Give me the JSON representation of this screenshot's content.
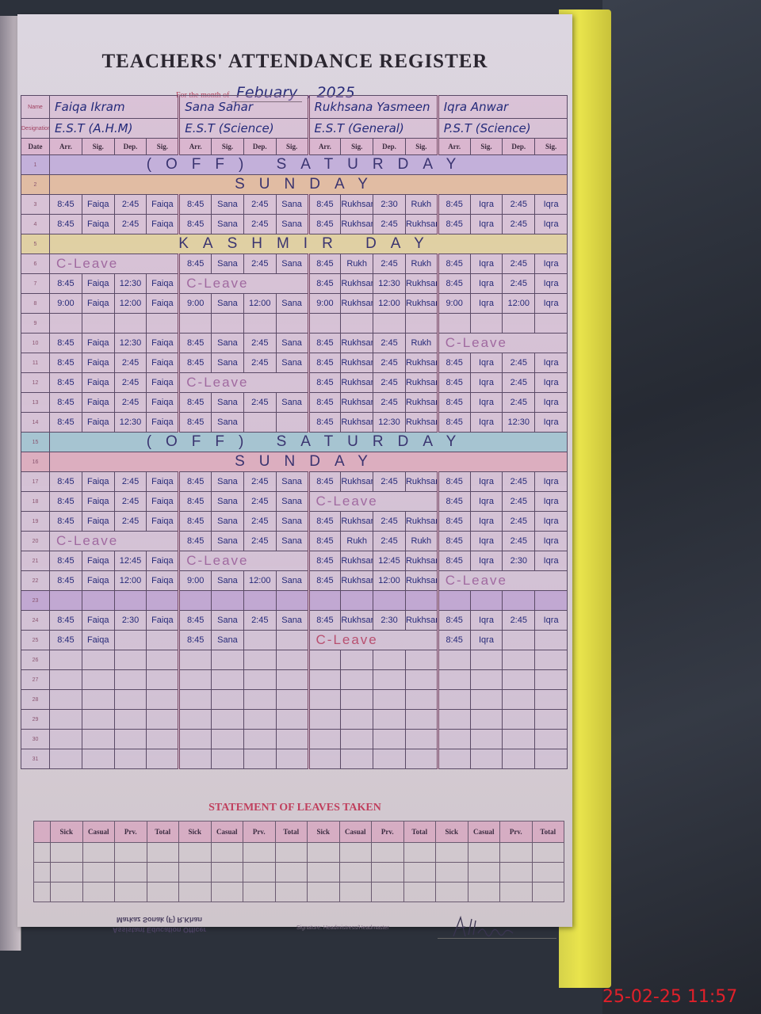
{
  "register": {
    "title": "TEACHERS' ATTENDANCE REGISTER",
    "month_label": "For the month of",
    "month_value": "Febuary",
    "year": ", 2025"
  },
  "labels": {
    "name": "Name",
    "designation": "Designation",
    "date": "Date"
  },
  "teachers": [
    {
      "name": "Faiqa Ikram",
      "designation": "E.S.T (A.H.M)"
    },
    {
      "name": "Sana Sahar",
      "designation": "E.S.T (Science)"
    },
    {
      "name": "Rukhsana Yasmeen",
      "designation": "E.S.T (General)"
    },
    {
      "name": "Iqra Anwar",
      "designation": "P.S.T (Science)"
    }
  ],
  "subheaders": [
    "Arr.",
    "Sig.",
    "Dep.",
    "Sig."
  ],
  "rows": [
    {
      "date": "1",
      "note": "(OFF) SATURDAY",
      "band": "#b9a6dc"
    },
    {
      "date": "2",
      "note": "SUNDAY",
      "band": "#e6b88a"
    },
    {
      "date": "3",
      "entries": [
        [
          "8:45",
          "Faiqa",
          "2:45",
          "Faiqa"
        ],
        [
          "8:45",
          "Sana",
          "2:45",
          "Sana"
        ],
        [
          "8:45",
          "Rukhsana",
          "2:30",
          "Rukh"
        ],
        [
          "8:45",
          "Iqra",
          "2:45",
          "Iqra"
        ]
      ]
    },
    {
      "date": "4",
      "entries": [
        [
          "8:45",
          "Faiqa",
          "2:45",
          "Faiqa"
        ],
        [
          "8:45",
          "Sana",
          "2:45",
          "Sana"
        ],
        [
          "8:45",
          "Rukhsana",
          "2:45",
          "Rukhsana"
        ],
        [
          "8:45",
          "Iqra",
          "2:45",
          "Iqra"
        ]
      ]
    },
    {
      "date": "5",
      "note": "KASHMIR DAY",
      "band": "#e4d68a"
    },
    {
      "date": "6",
      "entries": [
        {
          "leave": "C-Leave"
        },
        [
          "8:45",
          "Sana",
          "2:45",
          "Sana"
        ],
        [
          "8:45",
          "Rukh",
          "2:45",
          "Rukh"
        ],
        [
          "8:45",
          "Iqra",
          "2:45",
          "Iqra"
        ]
      ]
    },
    {
      "date": "7",
      "entries": [
        [
          "8:45",
          "Faiqa",
          "12:30",
          "Faiqa"
        ],
        {
          "leave": "C-Leave"
        },
        [
          "8:45",
          "Rukhsana",
          "12:30",
          "Rukhsana"
        ],
        [
          "8:45",
          "Iqra",
          "2:45",
          "Iqra"
        ]
      ]
    },
    {
      "date": "8",
      "entries": [
        [
          "9:00",
          "Faiqa",
          "12:00",
          "Faiqa"
        ],
        [
          "9:00",
          "Sana",
          "12:00",
          "Sana"
        ],
        [
          "9:00",
          "Rukhsana",
          "12:00",
          "Rukhsana"
        ],
        [
          "9:00",
          "Iqra",
          "12:00",
          "Iqra"
        ]
      ]
    },
    {
      "date": "9"
    },
    {
      "date": "10",
      "entries": [
        [
          "8:45",
          "Faiqa",
          "12:30",
          "Faiqa"
        ],
        [
          "8:45",
          "Sana",
          "2:45",
          "Sana"
        ],
        [
          "8:45",
          "Rukhsana",
          "2:45",
          "Rukh"
        ],
        {
          "leave": "C-Leave"
        }
      ]
    },
    {
      "date": "11",
      "entries": [
        [
          "8:45",
          "Faiqa",
          "2:45",
          "Faiqa"
        ],
        [
          "8:45",
          "Sana",
          "2:45",
          "Sana"
        ],
        [
          "8:45",
          "Rukhsana",
          "2:45",
          "Rukhsana"
        ],
        [
          "8:45",
          "Iqra",
          "2:45",
          "Iqra"
        ]
      ]
    },
    {
      "date": "12",
      "entries": [
        [
          "8:45",
          "Faiqa",
          "2:45",
          "Faiqa"
        ],
        {
          "leave": "C-Leave"
        },
        [
          "8:45",
          "Rukhsana",
          "2:45",
          "Rukhsana"
        ],
        [
          "8:45",
          "Iqra",
          "2:45",
          "Iqra"
        ]
      ]
    },
    {
      "date": "13",
      "entries": [
        [
          "8:45",
          "Faiqa",
          "2:45",
          "Faiqa"
        ],
        [
          "8:45",
          "Sana",
          "2:45",
          "Sana"
        ],
        [
          "8:45",
          "Rukhsana",
          "2:45",
          "Rukhsana"
        ],
        [
          "8:45",
          "Iqra",
          "2:45",
          "Iqra"
        ]
      ]
    },
    {
      "date": "14",
      "entries": [
        [
          "8:45",
          "Faiqa",
          "12:30",
          "Faiqa"
        ],
        [
          "8:45",
          "Sana",
          "",
          ""
        ],
        [
          "8:45",
          "Rukhsana",
          "12:30",
          "Rukhsana"
        ],
        [
          "8:45",
          "Iqra",
          "12:30",
          "Iqra"
        ]
      ]
    },
    {
      "date": "15",
      "note": "(OFF) SATURDAY",
      "band": "#8ec4cf"
    },
    {
      "date": "16",
      "note": "SUNDAY",
      "band": "#e0a4b4"
    },
    {
      "date": "17",
      "entries": [
        [
          "8:45",
          "Faiqa",
          "2:45",
          "Faiqa"
        ],
        [
          "8:45",
          "Sana",
          "2:45",
          "Sana"
        ],
        [
          "8:45",
          "Rukhsana",
          "2:45",
          "Rukhsana"
        ],
        [
          "8:45",
          "Iqra",
          "2:45",
          "Iqra"
        ]
      ]
    },
    {
      "date": "18",
      "entries": [
        [
          "8:45",
          "Faiqa",
          "2:45",
          "Faiqa"
        ],
        [
          "8:45",
          "Sana",
          "2:45",
          "Sana"
        ],
        {
          "leave": "C-Leave"
        },
        [
          "8:45",
          "Iqra",
          "2:45",
          "Iqra"
        ]
      ]
    },
    {
      "date": "19",
      "entries": [
        [
          "8:45",
          "Faiqa",
          "2:45",
          "Faiqa"
        ],
        [
          "8:45",
          "Sana",
          "2:45",
          "Sana"
        ],
        [
          "8:45",
          "Rukhsana",
          "2:45",
          "Rukhsana"
        ],
        [
          "8:45",
          "Iqra",
          "2:45",
          "Iqra"
        ]
      ]
    },
    {
      "date": "20",
      "entries": [
        {
          "leave": "C-Leave"
        },
        [
          "8:45",
          "Sana",
          "2:45",
          "Sana"
        ],
        [
          "8:45",
          "Rukh",
          "2:45",
          "Rukh"
        ],
        [
          "8:45",
          "Iqra",
          "2:45",
          "Iqra"
        ]
      ]
    },
    {
      "date": "21",
      "entries": [
        [
          "8:45",
          "Faiqa",
          "12:45",
          "Faiqa"
        ],
        {
          "leave": "C-Leave"
        },
        [
          "8:45",
          "Rukhsana",
          "12:45",
          "Rukhsana"
        ],
        [
          "8:45",
          "Iqra",
          "2:30",
          "Iqra"
        ]
      ]
    },
    {
      "date": "22",
      "entries": [
        [
          "8:45",
          "Faiqa",
          "12:00",
          "Faiqa"
        ],
        [
          "9:00",
          "Sana",
          "12:00",
          "Sana"
        ],
        [
          "8:45",
          "Rukhsana",
          "12:00",
          "Rukhsana"
        ],
        {
          "leave": "C-Leave"
        }
      ]
    },
    {
      "date": "23",
      "band": "#b89ad0"
    },
    {
      "date": "24",
      "entries": [
        [
          "8:45",
          "Faiqa",
          "2:30",
          "Faiqa"
        ],
        [
          "8:45",
          "Sana",
          "2:45",
          "Sana"
        ],
        [
          "8:45",
          "Rukhsana",
          "2:30",
          "Rukhsana"
        ],
        [
          "8:45",
          "Iqra",
          "2:45",
          "Iqra"
        ]
      ]
    },
    {
      "date": "25",
      "entries": [
        [
          "8:45",
          "Faiqa",
          "",
          ""
        ],
        [
          "8:45",
          "Sana",
          "",
          ""
        ],
        {
          "leave": "C-Leave"
        },
        [
          "8:45",
          "Iqra",
          "",
          ""
        ]
      ]
    },
    {
      "date": "26"
    },
    {
      "date": "27"
    },
    {
      "date": "28"
    },
    {
      "date": "29"
    },
    {
      "date": "30"
    },
    {
      "date": "31"
    }
  ],
  "leaves": {
    "title": "STATEMENT OF LEAVES TAKEN",
    "subheaders": [
      "Sick",
      "Casual",
      "Prv.",
      "Total"
    ]
  },
  "footer": {
    "stamp_line1": "Assistant Education Officer",
    "stamp_line2": "Markaz Sonak (F) R.Khan",
    "signature_label": "Signature: Headmistress/Headmaster"
  },
  "timestamp": "25-02-25  11:57",
  "colors": {
    "ink": "#262a78",
    "leave_ink": "#a06aa0",
    "heading_red": "#c0405e",
    "cover": "#e9e44c",
    "timestamp": "#e0202a"
  }
}
